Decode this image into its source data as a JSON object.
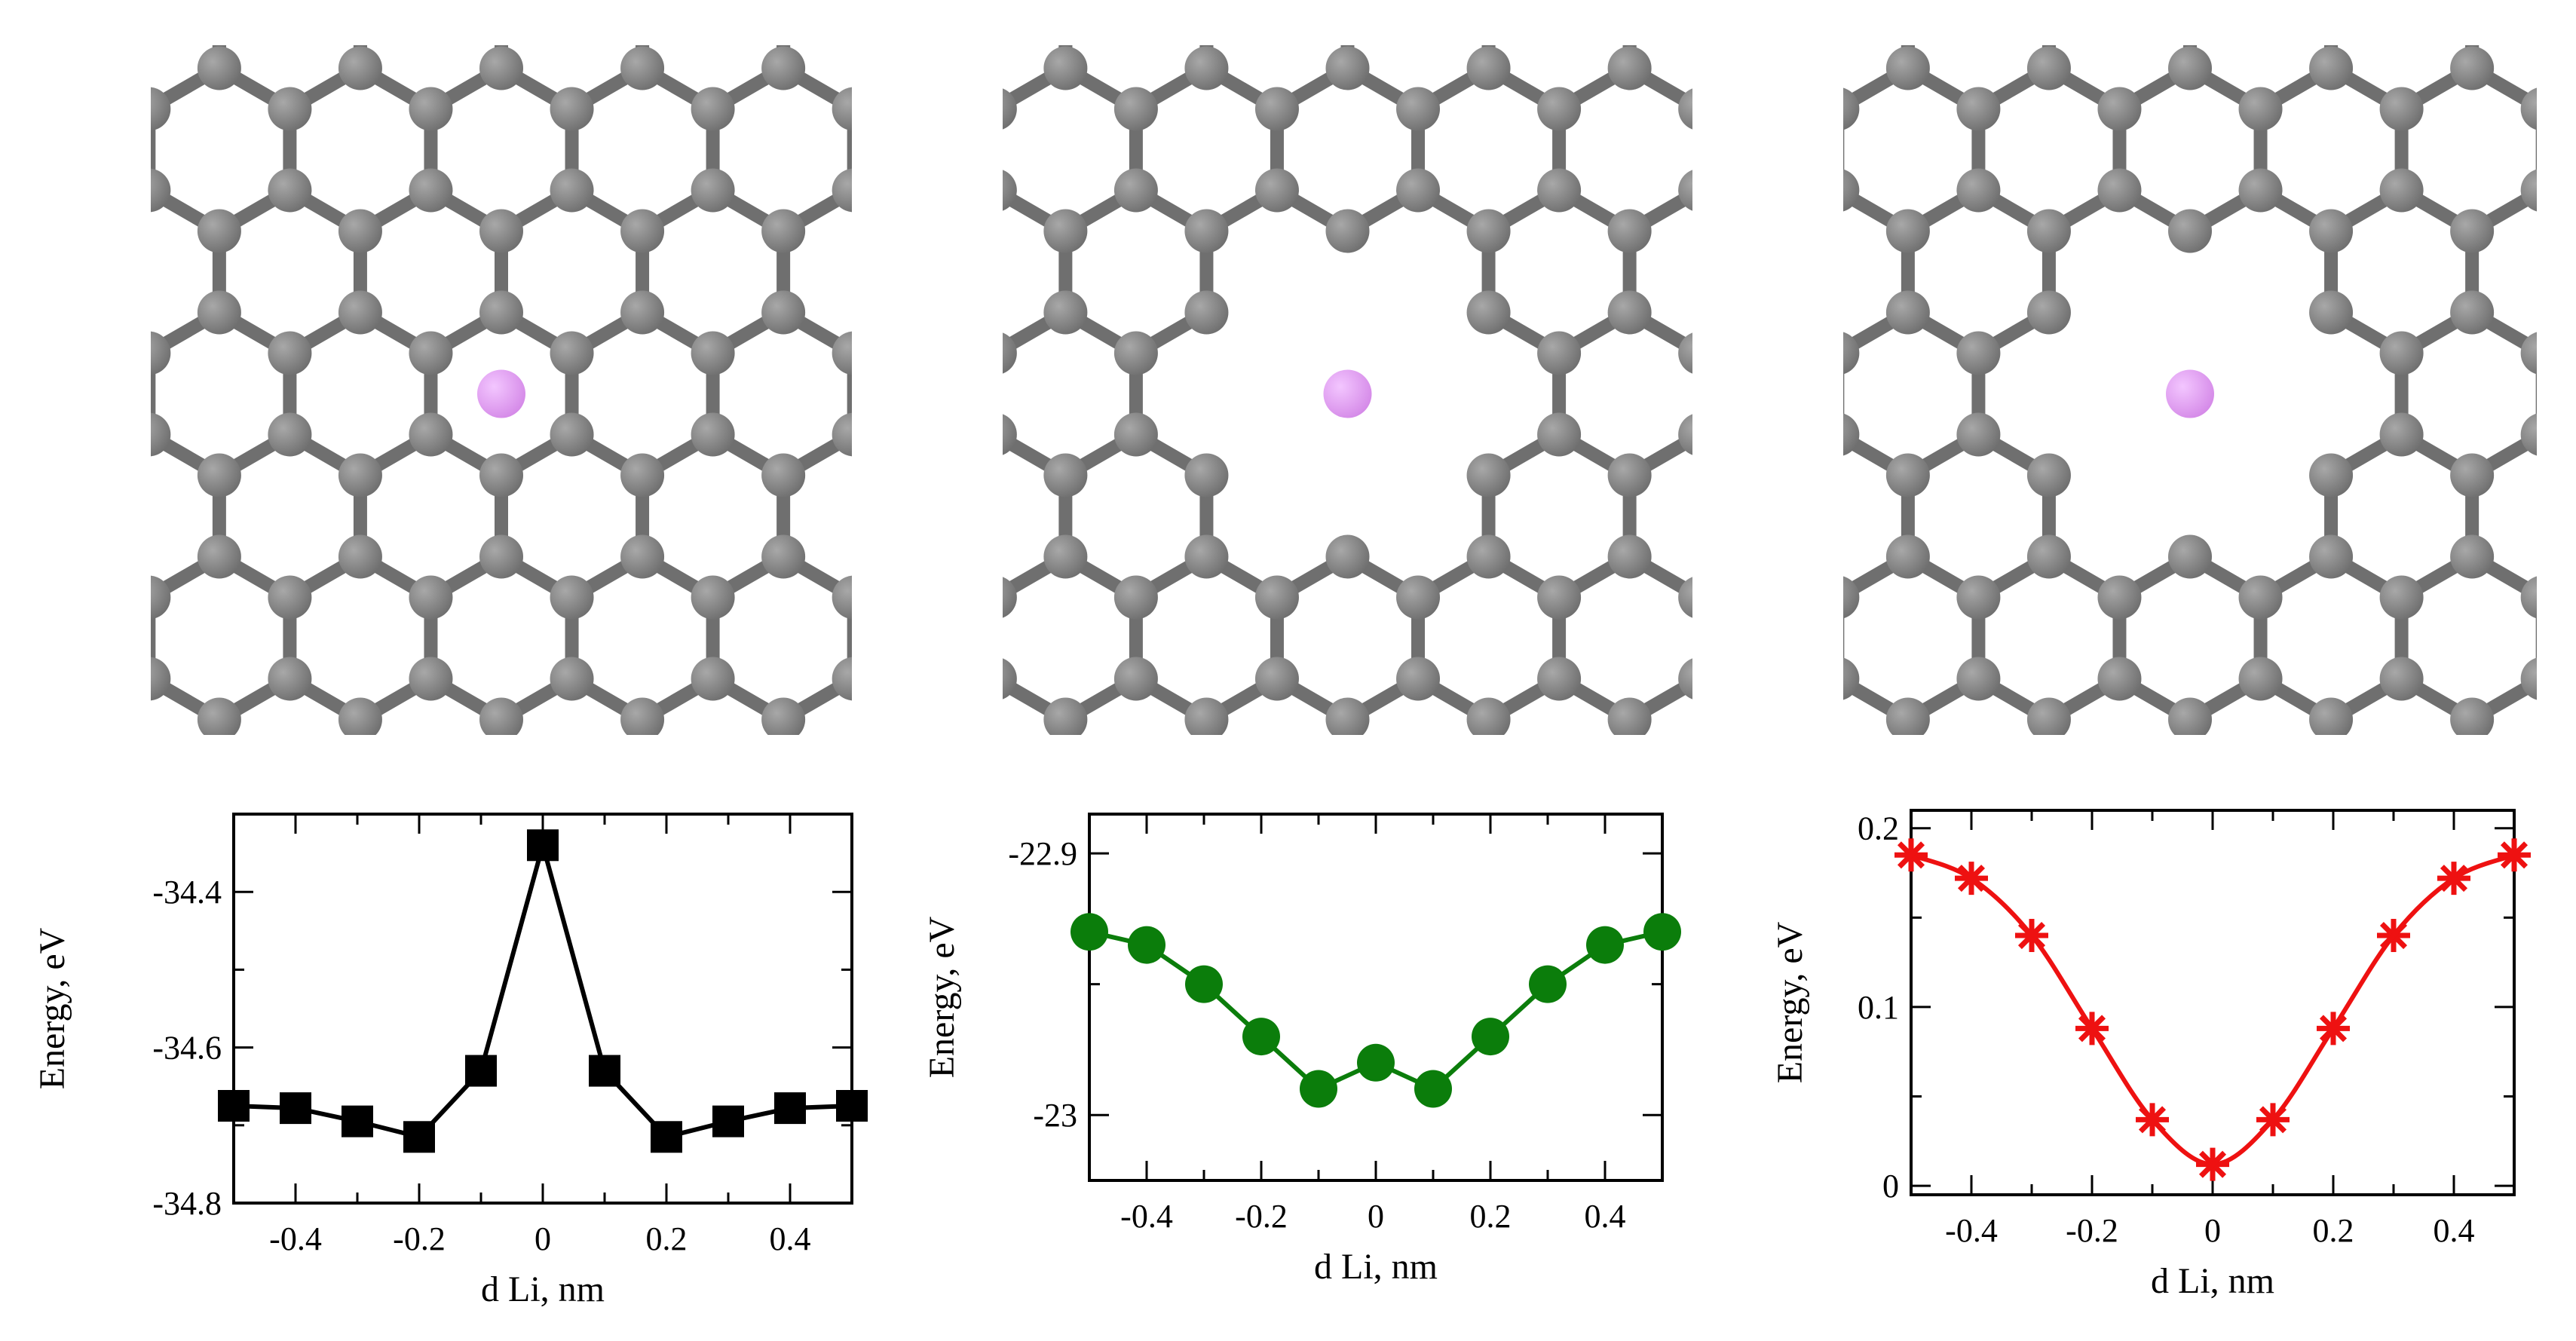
{
  "figure": {
    "panels": [
      {
        "structure": "pristine hexagonal carbon lattice",
        "carbon_color": "#6f6f6f",
        "li_color": "#d58ae8"
      },
      {
        "structure": "carbon lattice with small pore",
        "carbon_color": "#6f6f6f",
        "li_color": "#d58ae8"
      },
      {
        "structure": "carbon lattice with large pore",
        "carbon_color": "#6f6f6f",
        "li_color": "#d58ae8"
      }
    ]
  },
  "chart_data": [
    {
      "type": "line",
      "xlabel": "d Li, nm",
      "ylabel": "Energy, eV",
      "xlim": [
        -0.5,
        0.5
      ],
      "ylim": [
        -34.8,
        -34.3
      ],
      "xticks": [
        "-0.4",
        "-0.2",
        "0",
        "0.2",
        "0.4"
      ],
      "yticks": [
        "-34.8",
        "-34.6",
        "-34.4"
      ],
      "marker": "square",
      "color": "#000000",
      "series": [
        {
          "x": [
            -0.5,
            -0.4,
            -0.3,
            -0.2,
            -0.1,
            0,
            0.1,
            0.2,
            0.3,
            0.4,
            0.5
          ],
          "y": [
            -34.675,
            -34.678,
            -34.695,
            -34.715,
            -34.63,
            -34.34,
            -34.63,
            -34.715,
            -34.695,
            -34.678,
            -34.675
          ]
        }
      ]
    },
    {
      "type": "line",
      "xlabel": "d Li, nm",
      "ylabel": "Energy, eV",
      "xlim": [
        -0.5,
        0.5
      ],
      "ylim": [
        -23.025,
        -22.885
      ],
      "xticks": [
        "-0.4",
        "-0.2",
        "0",
        "0.2",
        "0.4"
      ],
      "yticks": [
        "-23",
        "-22.9"
      ],
      "marker": "circle",
      "color": "#0b7d0b",
      "series": [
        {
          "x": [
            -0.5,
            -0.4,
            -0.3,
            -0.2,
            -0.1,
            0,
            0.1,
            0.2,
            0.3,
            0.4,
            0.5
          ],
          "y": [
            -22.93,
            -22.935,
            -22.95,
            -22.97,
            -22.99,
            -22.98,
            -22.99,
            -22.97,
            -22.95,
            -22.935,
            -22.93
          ]
        }
      ]
    },
    {
      "type": "line",
      "xlabel": "d Li, nm",
      "ylabel": "Energy, eV",
      "xlim": [
        -0.5,
        0.5
      ],
      "ylim": [
        -0.005,
        0.21
      ],
      "xticks": [
        "-0.4",
        "-0.2",
        "0",
        "0.2",
        "0.4"
      ],
      "yticks": [
        "0",
        "0.1",
        "0.2"
      ],
      "marker": "asterisk",
      "color": "#ee1111",
      "series": [
        {
          "x": [
            -0.5,
            -0.4,
            -0.3,
            -0.2,
            -0.1,
            0,
            0.1,
            0.2,
            0.3,
            0.4,
            0.5
          ],
          "y": [
            0.185,
            0.172,
            0.14,
            0.088,
            0.037,
            0.012,
            0.037,
            0.088,
            0.14,
            0.172,
            0.185
          ]
        }
      ]
    }
  ]
}
